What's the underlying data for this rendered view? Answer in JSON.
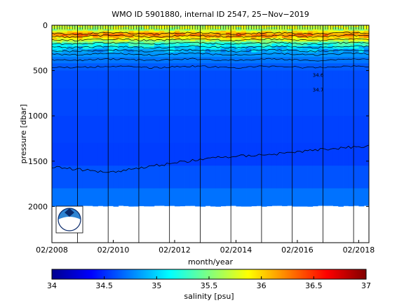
{
  "chart_data": {
    "type": "heatmap",
    "title": "WMO ID 5901880, internal ID 2547, 25−Nov−2019",
    "xlabel": "month/year",
    "ylabel": "pressure [dbar]",
    "x_ticks": [
      "02/2008",
      "02/2010",
      "02/2012",
      "02/2014",
      "02/2016",
      "02/2018"
    ],
    "y_ticks": [
      0,
      500,
      1000,
      1500,
      2000
    ],
    "xlim": [
      "2008-02",
      "2018-06"
    ],
    "ylim": [
      2400,
      0
    ],
    "y_reversed": true,
    "colorbar": {
      "label": "salinity [psu]",
      "range": [
        34,
        37
      ],
      "ticks": [
        34,
        34.5,
        35,
        35.5,
        36,
        36.5,
        37
      ],
      "tick_labels": [
        "34",
        "34.5",
        "35",
        "35.5",
        "36",
        "36.5",
        "37"
      ],
      "colormap": "jet",
      "colors": [
        "#00008f",
        "#0000ff",
        "#00ffff",
        "#ffff00",
        "#ff0000",
        "#800000"
      ]
    },
    "contour_labels": [
      "34.6",
      "34.7"
    ],
    "salinity_layers_psu_by_pressure": [
      {
        "pressure": 0,
        "salinity": 35.8
      },
      {
        "pressure": 50,
        "salinity": 35.6
      },
      {
        "pressure": 100,
        "salinity": 36.3
      },
      {
        "pressure": 150,
        "salinity": 35.9
      },
      {
        "pressure": 200,
        "salinity": 35.3
      },
      {
        "pressure": 250,
        "salinity": 35.0
      },
      {
        "pressure": 300,
        "salinity": 34.85
      },
      {
        "pressure": 400,
        "salinity": 34.7
      },
      {
        "pressure": 500,
        "salinity": 34.6
      },
      {
        "pressure": 1500,
        "salinity": 34.55
      },
      {
        "pressure": 2000,
        "salinity": 34.75
      }
    ],
    "contour_1500_depth_series": [
      {
        "date": "2008-02",
        "pressure": 1560
      },
      {
        "date": "2009-03",
        "pressure": 1600
      },
      {
        "date": "2010-01",
        "pressure": 1620
      },
      {
        "date": "2011-06",
        "pressure": 1550
      },
      {
        "date": "2013-06",
        "pressure": 1460
      },
      {
        "date": "2015-06",
        "pressure": 1420
      },
      {
        "date": "2016-12",
        "pressure": 1370
      },
      {
        "date": "2018-06",
        "pressure": 1330
      }
    ],
    "profile_bottom_pressure": 2000,
    "grid": {
      "x": true,
      "y": false
    },
    "logo": "noaa-logo"
  }
}
